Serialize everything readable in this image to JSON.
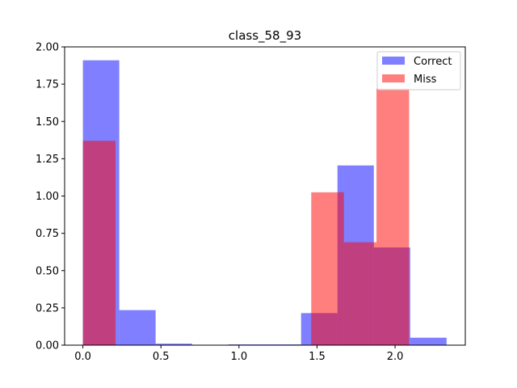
{
  "chart_data": {
    "type": "bar",
    "title": "class_58_93",
    "xlabel": "",
    "ylabel": "",
    "xlim": [
      -0.117,
      2.45
    ],
    "ylim": [
      0,
      2.0
    ],
    "x_ticks": [
      0.0,
      0.5,
      1.0,
      1.5,
      2.0
    ],
    "x_tick_labels": [
      "0.0",
      "0.5",
      "1.0",
      "1.5",
      "2.0"
    ],
    "y_ticks": [
      0.0,
      0.25,
      0.5,
      0.75,
      1.0,
      1.25,
      1.5,
      1.75,
      2.0
    ],
    "y_tick_labels": [
      "0.00",
      "0.25",
      "0.50",
      "0.75",
      "1.00",
      "1.25",
      "1.50",
      "1.75",
      "2.00"
    ],
    "legend_position": "top-right",
    "grid": false,
    "series": [
      {
        "name": "Correct",
        "color": "#8080ff",
        "bins": [
          0.0,
          0.233,
          0.466,
          0.699,
          0.932,
          1.165,
          1.398,
          1.631,
          1.864,
          2.097,
          2.33
        ],
        "values": [
          1.91,
          0.235,
          0.01,
          0.0,
          0.005,
          0.005,
          0.215,
          1.205,
          0.655,
          0.05
        ]
      },
      {
        "name": "Miss",
        "color": "#ff8080",
        "bins": [
          0.0,
          0.209,
          0.418,
          0.627,
          0.836,
          1.045,
          1.254,
          1.463,
          1.672,
          1.881,
          2.09
        ],
        "values": [
          1.37,
          0,
          0,
          0,
          0,
          0,
          0,
          1.025,
          0.69,
          1.72
        ]
      }
    ],
    "overlap_color": "#c04080"
  }
}
